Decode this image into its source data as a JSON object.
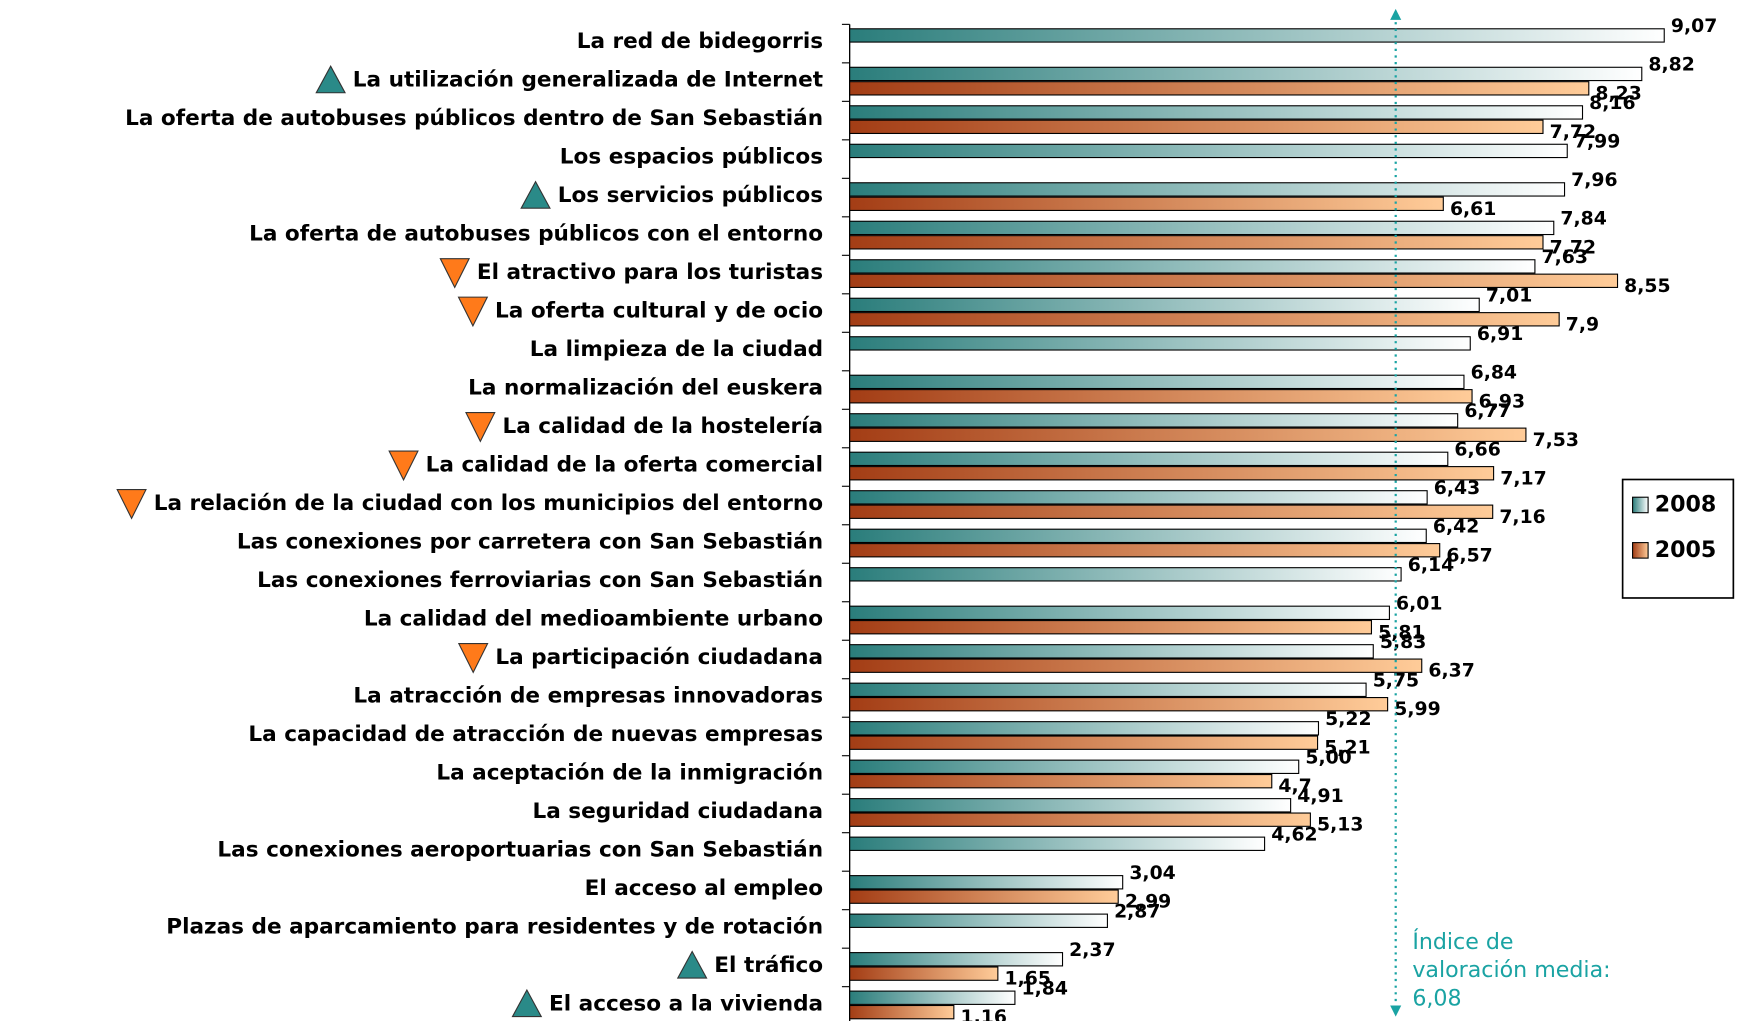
{
  "chart_data": {
    "type": "bar",
    "orientation": "horizontal",
    "categories": [
      "La red de bidegorris",
      "La utilización generalizada de Internet",
      "La oferta de autobuses públicos dentro de San Sebastián",
      "Los espacios públicos",
      "Los servicios públicos",
      "La oferta de autobuses públicos con el entorno",
      "El atractivo para los turistas",
      "La oferta cultural y de ocio",
      "La limpieza de la ciudad",
      "La normalización del euskera",
      "La calidad de la hostelería",
      "La calidad de la oferta comercial",
      "La relación de la ciudad con los municipios del entorno",
      "Las conexiones por carretera con San Sebastián",
      "Las conexiones ferroviarias con San Sebastián",
      "La calidad del medioambiente urbano",
      "La participación ciudadana",
      "La atracción de empresas innovadoras",
      "La capacidad de atracción de nuevas empresas",
      "La aceptación de la inmigración",
      "La seguridad ciudadana",
      "Las conexiones aeroportuarias con San Sebastián",
      "El acceso al empleo",
      "Plazas de aparcamiento para residentes y de rotación",
      "El tráfico",
      "El acceso a la vivienda"
    ],
    "trends": [
      null,
      "up",
      null,
      null,
      "up",
      null,
      "down",
      "down",
      null,
      null,
      "down",
      "down",
      "down",
      null,
      null,
      null,
      "down",
      null,
      null,
      null,
      null,
      null,
      null,
      null,
      "up",
      "up"
    ],
    "trend_colors": {
      "up": "#2a8a88",
      "down": "#ff7a1a"
    },
    "series": [
      {
        "name": "2008",
        "color": "#2a7d7b",
        "gradient_to": "#ffffff",
        "values": [
          9.07,
          8.82,
          8.16,
          7.99,
          7.96,
          7.84,
          7.63,
          7.01,
          6.91,
          6.84,
          6.77,
          6.66,
          6.43,
          6.42,
          6.14,
          6.01,
          5.83,
          5.75,
          5.22,
          5.0,
          4.91,
          4.62,
          3.04,
          2.87,
          2.37,
          1.84
        ],
        "value_labels": [
          "9,07",
          "8,82",
          "8,16",
          "7,99",
          "7,96",
          "7,84",
          "7,63",
          "7,01",
          "6,91",
          "6,84",
          "6,77",
          "6,66",
          "6,43",
          "6,42",
          "6,14",
          "6,01",
          "5,83",
          "5,75",
          "5,22",
          "5,00",
          "4,91",
          "4,62",
          "3,04",
          "2,87",
          "2,37",
          "1,84"
        ]
      },
      {
        "name": "2005",
        "color": "#a33d15",
        "gradient_to": "#ffcc99",
        "values": [
          null,
          8.23,
          7.72,
          null,
          6.61,
          7.72,
          8.55,
          7.9,
          null,
          6.93,
          7.53,
          7.17,
          7.16,
          6.57,
          null,
          5.81,
          6.37,
          5.99,
          5.21,
          4.7,
          5.13,
          null,
          2.99,
          null,
          1.65,
          1.16
        ],
        "value_labels": [
          null,
          "8,23",
          "7,72",
          null,
          "6,61",
          "7,72",
          "8,55",
          "7,9",
          null,
          "6,93",
          "7,53",
          "7,17",
          "7,16",
          "6,57",
          null,
          "5,81",
          "6,37",
          "5,99",
          "5,21",
          "4,7",
          "5,13",
          null,
          "2,99",
          null,
          "1,65",
          "1,16"
        ]
      }
    ],
    "xlim": [
      0,
      10
    ],
    "reference_line": {
      "value": 6.08,
      "color": "#1aa3a3",
      "label_lines": [
        "Índice de",
        "valoración media:",
        "6,08"
      ]
    },
    "legend": "right"
  }
}
